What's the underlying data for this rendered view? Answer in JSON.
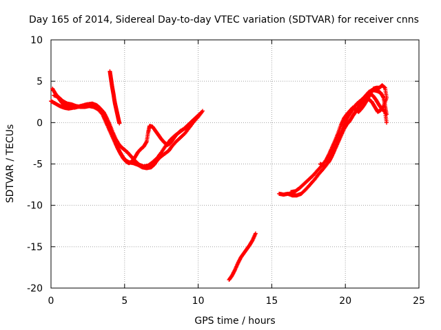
{
  "chart_data": {
    "type": "scatter",
    "title": "Day 165 of 2014, Sidereal Day-to-day VTEC variation (SDTVAR) for receiver cnns",
    "xlabel": "GPS time / hours",
    "ylabel": "SDTVAR / TECUs",
    "xlim": [
      0,
      25
    ],
    "ylim": [
      -20,
      10
    ],
    "xticks": [
      0,
      5,
      10,
      15,
      20,
      25
    ],
    "yticks": [
      -20,
      -15,
      -10,
      -5,
      0,
      5,
      10
    ],
    "grid": true,
    "marker": "+",
    "series": [
      {
        "name": "SDTVAR",
        "color": "#ff0000",
        "segments": [
          [
            [
              0.0,
              2.6
            ],
            [
              0.3,
              2.3
            ],
            [
              0.6,
              2.0
            ],
            [
              0.9,
              1.8
            ],
            [
              1.2,
              1.7
            ],
            [
              1.5,
              1.8
            ],
            [
              1.8,
              1.9
            ],
            [
              2.1,
              2.0
            ],
            [
              2.4,
              2.1
            ],
            [
              2.7,
              2.2
            ],
            [
              3.0,
              2.1
            ],
            [
              3.2,
              1.9
            ],
            [
              3.4,
              1.6
            ],
            [
              3.6,
              1.2
            ],
            [
              3.8,
              0.5
            ],
            [
              4.0,
              -0.3
            ],
            [
              4.2,
              -1.2
            ],
            [
              4.4,
              -2.0
            ],
            [
              4.6,
              -2.6
            ],
            [
              4.8,
              -3.0
            ],
            [
              5.0,
              -3.3
            ],
            [
              5.2,
              -3.6
            ],
            [
              5.4,
              -4.0
            ],
            [
              5.6,
              -4.4
            ],
            [
              5.8,
              -4.8
            ],
            [
              6.0,
              -5.1
            ],
            [
              6.3,
              -5.3
            ],
            [
              6.6,
              -5.2
            ],
            [
              6.9,
              -4.8
            ],
            [
              7.2,
              -4.3
            ],
            [
              7.5,
              -3.6
            ],
            [
              7.8,
              -2.8
            ],
            [
              8.1,
              -2.1
            ],
            [
              8.4,
              -1.6
            ],
            [
              8.7,
              -1.2
            ],
            [
              9.0,
              -0.8
            ],
            [
              9.3,
              -0.3
            ],
            [
              9.6,
              0.2
            ],
            [
              9.9,
              0.7
            ],
            [
              10.2,
              1.2
            ]
          ],
          [
            [
              0.1,
              4.1
            ],
            [
              0.3,
              3.5
            ],
            [
              0.5,
              3.0
            ],
            [
              0.7,
              2.5
            ],
            [
              0.9,
              2.1
            ],
            [
              1.2,
              1.9
            ],
            [
              1.6,
              1.8
            ],
            [
              2.0,
              2.0
            ],
            [
              2.4,
              2.2
            ],
            [
              2.8,
              2.3
            ],
            [
              3.1,
              2.1
            ],
            [
              3.3,
              1.8
            ],
            [
              3.5,
              1.3
            ],
            [
              3.7,
              0.6
            ],
            [
              3.9,
              -0.2
            ],
            [
              4.1,
              -1.1
            ],
            [
              4.3,
              -2.0
            ],
            [
              4.5,
              -2.9
            ],
            [
              4.7,
              -3.6
            ],
            [
              4.9,
              -4.2
            ],
            [
              5.1,
              -4.6
            ],
            [
              5.3,
              -4.8
            ],
            [
              5.6,
              -4.9
            ],
            [
              5.9,
              -5.1
            ],
            [
              6.2,
              -5.4
            ],
            [
              6.5,
              -5.5
            ],
            [
              6.8,
              -5.4
            ],
            [
              7.0,
              -5.1
            ],
            [
              7.2,
              -4.6
            ],
            [
              7.4,
              -4.2
            ],
            [
              7.7,
              -3.8
            ],
            [
              8.0,
              -3.4
            ],
            [
              8.2,
              -2.9
            ],
            [
              8.5,
              -2.3
            ],
            [
              8.8,
              -1.8
            ],
            [
              9.1,
              -1.3
            ],
            [
              9.4,
              -0.6
            ],
            [
              9.7,
              0.1
            ],
            [
              10.0,
              0.7
            ],
            [
              10.3,
              1.4
            ]
          ],
          [
            [
              0.2,
              3.3
            ],
            [
              0.5,
              3.1
            ],
            [
              0.8,
              2.6
            ],
            [
              1.1,
              2.3
            ],
            [
              1.4,
              2.2
            ],
            [
              1.7,
              2.0
            ],
            [
              2.0,
              1.9
            ],
            [
              2.3,
              1.9
            ],
            [
              2.6,
              2.0
            ],
            [
              2.9,
              1.9
            ],
            [
              3.2,
              1.6
            ],
            [
              3.5,
              1.0
            ],
            [
              3.7,
              0.2
            ],
            [
              3.9,
              -0.6
            ],
            [
              4.1,
              -1.4
            ],
            [
              4.3,
              -2.2
            ],
            [
              4.5,
              -3.0
            ],
            [
              4.7,
              -3.7
            ],
            [
              4.9,
              -4.3
            ],
            [
              5.1,
              -4.7
            ],
            [
              5.3,
              -4.9
            ],
            [
              5.5,
              -4.7
            ],
            [
              5.7,
              -4.2
            ],
            [
              5.9,
              -3.6
            ],
            [
              6.1,
              -3.2
            ],
            [
              6.3,
              -2.9
            ],
            [
              6.5,
              -2.3
            ],
            [
              6.6,
              -1.2
            ],
            [
              6.7,
              -0.4
            ],
            [
              6.9,
              -0.5
            ],
            [
              7.1,
              -1.0
            ],
            [
              7.3,
              -1.5
            ],
            [
              7.5,
              -2.0
            ],
            [
              7.7,
              -2.4
            ],
            [
              7.9,
              -2.7
            ],
            [
              8.1,
              -2.5
            ],
            [
              8.3,
              -2.0
            ],
            [
              8.5,
              -1.5
            ],
            [
              8.8,
              -1.0
            ],
            [
              9.2,
              -0.6
            ]
          ],
          [
            [
              4.0,
              6.2
            ],
            [
              4.05,
              5.6
            ],
            [
              4.1,
              5.0
            ],
            [
              4.15,
              4.4
            ],
            [
              4.2,
              3.9
            ],
            [
              4.25,
              3.4
            ],
            [
              4.3,
              2.8
            ],
            [
              4.35,
              2.3
            ],
            [
              4.4,
              1.9
            ],
            [
              4.45,
              1.5
            ],
            [
              4.5,
              1.1
            ],
            [
              4.55,
              0.7
            ],
            [
              4.6,
              0.3
            ],
            [
              4.65,
              -0.1
            ]
          ],
          [
            [
              12.1,
              -19.0
            ],
            [
              12.3,
              -18.5
            ],
            [
              12.5,
              -17.8
            ],
            [
              12.7,
              -17.0
            ],
            [
              12.9,
              -16.3
            ],
            [
              13.1,
              -15.8
            ],
            [
              13.3,
              -15.3
            ],
            [
              13.5,
              -14.8
            ],
            [
              13.7,
              -14.2
            ],
            [
              13.9,
              -13.4
            ]
          ],
          [
            [
              15.5,
              -8.6
            ],
            [
              15.8,
              -8.7
            ],
            [
              16.1,
              -8.6
            ],
            [
              16.4,
              -8.8
            ],
            [
              16.7,
              -8.8
            ],
            [
              17.0,
              -8.6
            ],
            [
              17.3,
              -8.1
            ],
            [
              17.6,
              -7.5
            ],
            [
              17.9,
              -6.9
            ],
            [
              18.2,
              -6.2
            ],
            [
              18.5,
              -5.6
            ],
            [
              18.8,
              -4.9
            ],
            [
              19.0,
              -4.3
            ],
            [
              19.2,
              -3.5
            ],
            [
              19.4,
              -2.6
            ],
            [
              19.6,
              -1.7
            ],
            [
              19.8,
              -0.8
            ],
            [
              20.0,
              0.1
            ],
            [
              20.2,
              0.8
            ],
            [
              20.4,
              1.3
            ],
            [
              20.6,
              1.9
            ],
            [
              20.8,
              2.3
            ],
            [
              21.0,
              2.6
            ],
            [
              21.2,
              2.9
            ],
            [
              21.4,
              3.3
            ],
            [
              21.6,
              3.7
            ],
            [
              21.8,
              3.9
            ],
            [
              22.0,
              3.9
            ],
            [
              22.2,
              3.8
            ],
            [
              22.4,
              3.6
            ],
            [
              22.6,
              3.0
            ],
            [
              22.7,
              2.0
            ],
            [
              22.8,
              1.0
            ]
          ],
          [
            [
              16.3,
              -8.4
            ],
            [
              16.6,
              -8.3
            ],
            [
              16.9,
              -7.9
            ],
            [
              17.2,
              -7.4
            ],
            [
              17.5,
              -6.9
            ],
            [
              17.8,
              -6.4
            ],
            [
              18.1,
              -5.8
            ],
            [
              18.4,
              -5.2
            ],
            [
              18.7,
              -4.5
            ],
            [
              18.9,
              -3.8
            ],
            [
              19.1,
              -3.0
            ],
            [
              19.3,
              -2.2
            ],
            [
              19.5,
              -1.3
            ],
            [
              19.7,
              -0.3
            ],
            [
              19.9,
              0.5
            ],
            [
              20.1,
              1.0
            ],
            [
              20.3,
              1.4
            ],
            [
              20.5,
              1.8
            ],
            [
              20.7,
              1.6
            ],
            [
              20.9,
              1.3
            ],
            [
              21.1,
              1.7
            ],
            [
              21.3,
              2.2
            ],
            [
              21.5,
              2.8
            ],
            [
              21.7,
              3.5
            ],
            [
              21.9,
              4.1
            ],
            [
              22.1,
              4.2
            ],
            [
              22.3,
              4.2
            ],
            [
              22.5,
              4.5
            ],
            [
              22.7,
              4.2
            ],
            [
              22.8,
              3.0
            ],
            [
              22.6,
              2.0
            ],
            [
              22.4,
              1.5
            ],
            [
              22.2,
              1.3
            ],
            [
              22.0,
              1.9
            ],
            [
              21.8,
              2.5
            ],
            [
              21.6,
              2.8
            ]
          ],
          [
            [
              18.3,
              -5.0
            ],
            [
              18.6,
              -5.3
            ],
            [
              18.9,
              -4.7
            ],
            [
              19.1,
              -4.0
            ],
            [
              19.3,
              -3.2
            ],
            [
              19.5,
              -2.4
            ],
            [
              19.7,
              -1.6
            ],
            [
              19.9,
              -0.8
            ],
            [
              20.1,
              -0.2
            ],
            [
              20.3,
              0.2
            ],
            [
              20.5,
              0.8
            ],
            [
              20.7,
              1.3
            ],
            [
              20.9,
              1.9
            ],
            [
              21.1,
              2.4
            ],
            [
              21.3,
              2.9
            ],
            [
              21.5,
              3.4
            ],
            [
              21.7,
              3.5
            ],
            [
              21.9,
              3.2
            ],
            [
              22.1,
              2.7
            ],
            [
              22.3,
              2.1
            ],
            [
              22.5,
              1.6
            ],
            [
              22.7,
              1.3
            ],
            [
              22.8,
              0.0
            ]
          ]
        ]
      }
    ]
  }
}
